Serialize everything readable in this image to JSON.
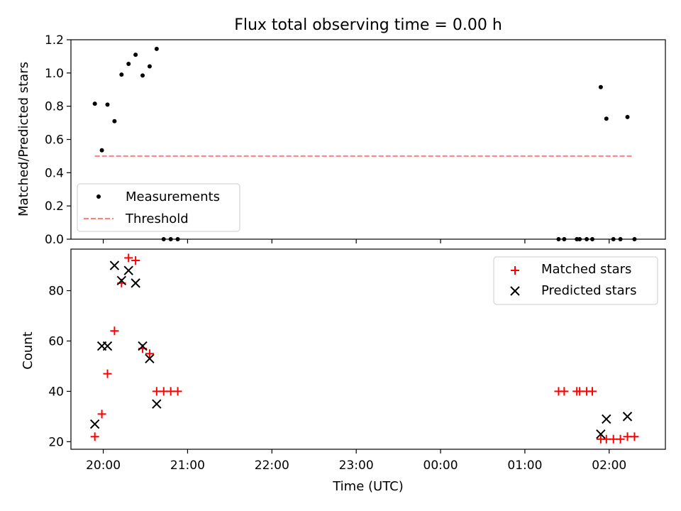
{
  "figure": {
    "title": "Flux total observing time = 0.00 h",
    "xlabel": "Time (UTC)",
    "x_ticks": [
      "20:00",
      "21:00",
      "22:00",
      "23:00",
      "00:00",
      "01:00",
      "02:00"
    ]
  },
  "chart_data": [
    {
      "type": "scatter",
      "ylabel": "Matched/Predicted stars",
      "xlim": [
        "19:37",
        "02:40"
      ],
      "ylim": [
        0,
        1.2
      ],
      "y_ticks": [
        "0.0",
        "0.2",
        "0.4",
        "0.6",
        "0.8",
        "1.0",
        "1.2"
      ],
      "legend": {
        "position": "lower-left"
      },
      "series": [
        {
          "name": "Measurements",
          "marker": "dot",
          "color": "#000000",
          "points": [
            {
              "x": "19:54",
              "y": 0.815
            },
            {
              "x": "19:59",
              "y": 0.535
            },
            {
              "x": "20:03",
              "y": 0.81
            },
            {
              "x": "20:08",
              "y": 0.71
            },
            {
              "x": "20:13",
              "y": 0.99
            },
            {
              "x": "20:18",
              "y": 1.055
            },
            {
              "x": "20:23",
              "y": 1.11
            },
            {
              "x": "20:28",
              "y": 0.985
            },
            {
              "x": "20:33",
              "y": 1.04
            },
            {
              "x": "20:38",
              "y": 1.145
            },
            {
              "x": "20:43",
              "y": 0.0
            },
            {
              "x": "20:48",
              "y": 0.0
            },
            {
              "x": "20:53",
              "y": 0.0
            },
            {
              "x": "01:24",
              "y": 0.0
            },
            {
              "x": "01:28",
              "y": 0.0
            },
            {
              "x": "01:37",
              "y": 0.0
            },
            {
              "x": "01:39",
              "y": 0.0
            },
            {
              "x": "01:44",
              "y": 0.0
            },
            {
              "x": "01:48",
              "y": 0.0
            },
            {
              "x": "01:54",
              "y": 0.915
            },
            {
              "x": "01:58",
              "y": 0.725
            },
            {
              "x": "02:03",
              "y": 0.0
            },
            {
              "x": "02:08",
              "y": 0.0
            },
            {
              "x": "02:13",
              "y": 0.735
            },
            {
              "x": "02:18",
              "y": 0.0
            }
          ]
        },
        {
          "name": "Threshold",
          "type": "line",
          "style": "dashed",
          "color": "#ff7f7f",
          "points": [
            {
              "x": "19:54",
              "y": 0.5
            },
            {
              "x": "02:16",
              "y": 0.5
            }
          ]
        }
      ]
    },
    {
      "type": "scatter",
      "ylabel": "Count",
      "xlim": [
        "19:37",
        "02:40"
      ],
      "ylim": [
        17,
        96.5
      ],
      "y_ticks": [
        "20",
        "40",
        "60",
        "80"
      ],
      "legend": {
        "position": "upper-right"
      },
      "series": [
        {
          "name": "Matched stars",
          "marker": "plus",
          "color": "#ff0000",
          "points": [
            {
              "x": "19:54",
              "y": 22
            },
            {
              "x": "19:59",
              "y": 31
            },
            {
              "x": "20:03",
              "y": 47
            },
            {
              "x": "20:08",
              "y": 64
            },
            {
              "x": "20:13",
              "y": 83
            },
            {
              "x": "20:18",
              "y": 93
            },
            {
              "x": "20:23",
              "y": 92
            },
            {
              "x": "20:28",
              "y": 57
            },
            {
              "x": "20:33",
              "y": 55
            },
            {
              "x": "20:38",
              "y": 40
            },
            {
              "x": "20:43",
              "y": 40
            },
            {
              "x": "20:48",
              "y": 40
            },
            {
              "x": "20:53",
              "y": 40
            },
            {
              "x": "01:24",
              "y": 40
            },
            {
              "x": "01:28",
              "y": 40
            },
            {
              "x": "01:37",
              "y": 40
            },
            {
              "x": "01:39",
              "y": 40
            },
            {
              "x": "01:44",
              "y": 40
            },
            {
              "x": "01:48",
              "y": 40
            },
            {
              "x": "01:54",
              "y": 21
            },
            {
              "x": "01:58",
              "y": 21
            },
            {
              "x": "02:03",
              "y": 21
            },
            {
              "x": "02:08",
              "y": 21
            },
            {
              "x": "02:13",
              "y": 22
            },
            {
              "x": "02:18",
              "y": 22
            }
          ]
        },
        {
          "name": "Predicted stars",
          "marker": "x",
          "color": "#000000",
          "points": [
            {
              "x": "19:54",
              "y": 27
            },
            {
              "x": "19:59",
              "y": 58
            },
            {
              "x": "20:03",
              "y": 58
            },
            {
              "x": "20:08",
              "y": 90
            },
            {
              "x": "20:13",
              "y": 84
            },
            {
              "x": "20:18",
              "y": 88
            },
            {
              "x": "20:23",
              "y": 83
            },
            {
              "x": "20:28",
              "y": 58
            },
            {
              "x": "20:33",
              "y": 53
            },
            {
              "x": "20:38",
              "y": 35
            },
            {
              "x": "01:54",
              "y": 23
            },
            {
              "x": "01:58",
              "y": 29
            },
            {
              "x": "02:13",
              "y": 30
            }
          ]
        }
      ]
    }
  ]
}
